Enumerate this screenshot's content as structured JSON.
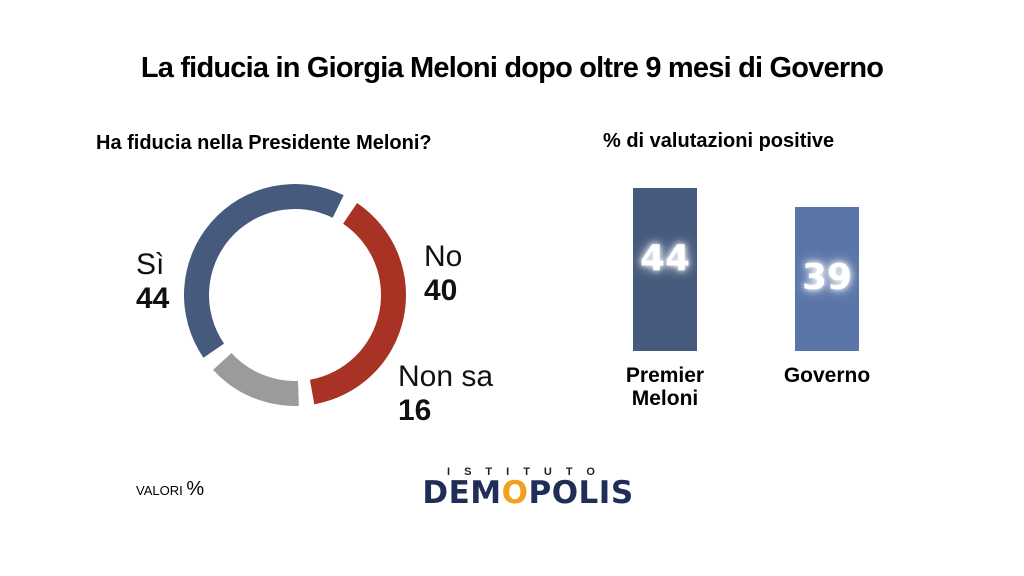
{
  "title": "La fiducia in Giorgia Meloni dopo oltre 9 mesi di Governo",
  "chart_data": [
    {
      "type": "pie",
      "subtitle": "Ha fiducia nella Presidente Meloni?",
      "series": [
        {
          "name": "Sì",
          "value": 44,
          "color": "#455a7c"
        },
        {
          "name": "No",
          "value": 40,
          "color": "#a83325"
        },
        {
          "name": "Non sa",
          "value": 16,
          "color": "#9b9b9b"
        }
      ]
    },
    {
      "type": "bar",
      "subtitle": "% di valutazioni positive",
      "categories": [
        "Premier Meloni",
        "Governo"
      ],
      "category_lines": [
        [
          "Premier",
          "Meloni"
        ],
        [
          "Governo"
        ]
      ],
      "values": [
        44,
        39
      ],
      "colors": [
        "#455a7c",
        "#5a76a8"
      ],
      "ylim": [
        0,
        50
      ]
    }
  ],
  "footer": {
    "units_label": "VALORI",
    "units_symbol": "%"
  },
  "logo": {
    "top": "ISTITUTO",
    "main_before": "DEM",
    "main_o": "O",
    "main_after": "POLIS"
  }
}
